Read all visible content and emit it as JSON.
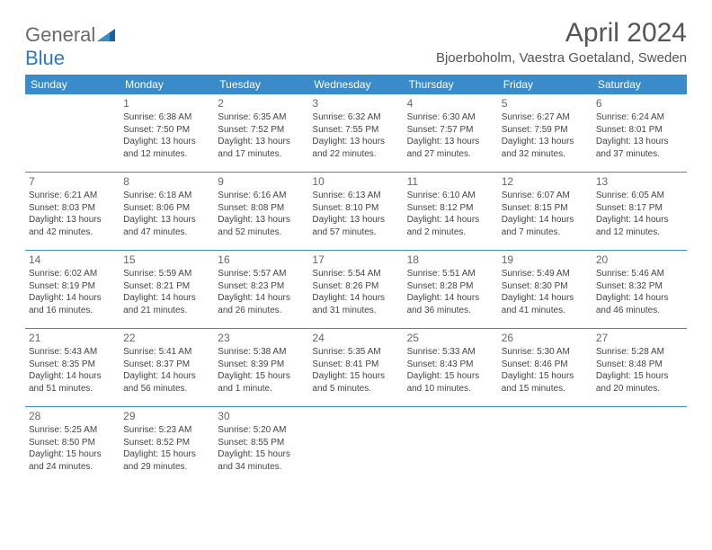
{
  "logo": {
    "part1": "General",
    "part2": "Blue"
  },
  "title": "April 2024",
  "location": "Bjoerboholm, Vaestra Goetaland, Sweden",
  "colors": {
    "header_bg": "#3a8bc9",
    "header_fg": "#ffffff",
    "rule": "#3a8bc9",
    "text": "#444444",
    "title": "#555555",
    "logo_gray": "#6a6a6a",
    "logo_blue": "#2c7ac0"
  },
  "weekdays": [
    "Sunday",
    "Monday",
    "Tuesday",
    "Wednesday",
    "Thursday",
    "Friday",
    "Saturday"
  ],
  "weeks": [
    [
      {
        "n": "",
        "sr": "",
        "ss": "",
        "dl": ""
      },
      {
        "n": "1",
        "sr": "Sunrise: 6:38 AM",
        "ss": "Sunset: 7:50 PM",
        "dl": "Daylight: 13 hours and 12 minutes."
      },
      {
        "n": "2",
        "sr": "Sunrise: 6:35 AM",
        "ss": "Sunset: 7:52 PM",
        "dl": "Daylight: 13 hours and 17 minutes."
      },
      {
        "n": "3",
        "sr": "Sunrise: 6:32 AM",
        "ss": "Sunset: 7:55 PM",
        "dl": "Daylight: 13 hours and 22 minutes."
      },
      {
        "n": "4",
        "sr": "Sunrise: 6:30 AM",
        "ss": "Sunset: 7:57 PM",
        "dl": "Daylight: 13 hours and 27 minutes."
      },
      {
        "n": "5",
        "sr": "Sunrise: 6:27 AM",
        "ss": "Sunset: 7:59 PM",
        "dl": "Daylight: 13 hours and 32 minutes."
      },
      {
        "n": "6",
        "sr": "Sunrise: 6:24 AM",
        "ss": "Sunset: 8:01 PM",
        "dl": "Daylight: 13 hours and 37 minutes."
      }
    ],
    [
      {
        "n": "7",
        "sr": "Sunrise: 6:21 AM",
        "ss": "Sunset: 8:03 PM",
        "dl": "Daylight: 13 hours and 42 minutes."
      },
      {
        "n": "8",
        "sr": "Sunrise: 6:18 AM",
        "ss": "Sunset: 8:06 PM",
        "dl": "Daylight: 13 hours and 47 minutes."
      },
      {
        "n": "9",
        "sr": "Sunrise: 6:16 AM",
        "ss": "Sunset: 8:08 PM",
        "dl": "Daylight: 13 hours and 52 minutes."
      },
      {
        "n": "10",
        "sr": "Sunrise: 6:13 AM",
        "ss": "Sunset: 8:10 PM",
        "dl": "Daylight: 13 hours and 57 minutes."
      },
      {
        "n": "11",
        "sr": "Sunrise: 6:10 AM",
        "ss": "Sunset: 8:12 PM",
        "dl": "Daylight: 14 hours and 2 minutes."
      },
      {
        "n": "12",
        "sr": "Sunrise: 6:07 AM",
        "ss": "Sunset: 8:15 PM",
        "dl": "Daylight: 14 hours and 7 minutes."
      },
      {
        "n": "13",
        "sr": "Sunrise: 6:05 AM",
        "ss": "Sunset: 8:17 PM",
        "dl": "Daylight: 14 hours and 12 minutes."
      }
    ],
    [
      {
        "n": "14",
        "sr": "Sunrise: 6:02 AM",
        "ss": "Sunset: 8:19 PM",
        "dl": "Daylight: 14 hours and 16 minutes."
      },
      {
        "n": "15",
        "sr": "Sunrise: 5:59 AM",
        "ss": "Sunset: 8:21 PM",
        "dl": "Daylight: 14 hours and 21 minutes."
      },
      {
        "n": "16",
        "sr": "Sunrise: 5:57 AM",
        "ss": "Sunset: 8:23 PM",
        "dl": "Daylight: 14 hours and 26 minutes."
      },
      {
        "n": "17",
        "sr": "Sunrise: 5:54 AM",
        "ss": "Sunset: 8:26 PM",
        "dl": "Daylight: 14 hours and 31 minutes."
      },
      {
        "n": "18",
        "sr": "Sunrise: 5:51 AM",
        "ss": "Sunset: 8:28 PM",
        "dl": "Daylight: 14 hours and 36 minutes."
      },
      {
        "n": "19",
        "sr": "Sunrise: 5:49 AM",
        "ss": "Sunset: 8:30 PM",
        "dl": "Daylight: 14 hours and 41 minutes."
      },
      {
        "n": "20",
        "sr": "Sunrise: 5:46 AM",
        "ss": "Sunset: 8:32 PM",
        "dl": "Daylight: 14 hours and 46 minutes."
      }
    ],
    [
      {
        "n": "21",
        "sr": "Sunrise: 5:43 AM",
        "ss": "Sunset: 8:35 PM",
        "dl": "Daylight: 14 hours and 51 minutes."
      },
      {
        "n": "22",
        "sr": "Sunrise: 5:41 AM",
        "ss": "Sunset: 8:37 PM",
        "dl": "Daylight: 14 hours and 56 minutes."
      },
      {
        "n": "23",
        "sr": "Sunrise: 5:38 AM",
        "ss": "Sunset: 8:39 PM",
        "dl": "Daylight: 15 hours and 1 minute."
      },
      {
        "n": "24",
        "sr": "Sunrise: 5:35 AM",
        "ss": "Sunset: 8:41 PM",
        "dl": "Daylight: 15 hours and 5 minutes."
      },
      {
        "n": "25",
        "sr": "Sunrise: 5:33 AM",
        "ss": "Sunset: 8:43 PM",
        "dl": "Daylight: 15 hours and 10 minutes."
      },
      {
        "n": "26",
        "sr": "Sunrise: 5:30 AM",
        "ss": "Sunset: 8:46 PM",
        "dl": "Daylight: 15 hours and 15 minutes."
      },
      {
        "n": "27",
        "sr": "Sunrise: 5:28 AM",
        "ss": "Sunset: 8:48 PM",
        "dl": "Daylight: 15 hours and 20 minutes."
      }
    ],
    [
      {
        "n": "28",
        "sr": "Sunrise: 5:25 AM",
        "ss": "Sunset: 8:50 PM",
        "dl": "Daylight: 15 hours and 24 minutes."
      },
      {
        "n": "29",
        "sr": "Sunrise: 5:23 AM",
        "ss": "Sunset: 8:52 PM",
        "dl": "Daylight: 15 hours and 29 minutes."
      },
      {
        "n": "30",
        "sr": "Sunrise: 5:20 AM",
        "ss": "Sunset: 8:55 PM",
        "dl": "Daylight: 15 hours and 34 minutes."
      },
      {
        "n": "",
        "sr": "",
        "ss": "",
        "dl": ""
      },
      {
        "n": "",
        "sr": "",
        "ss": "",
        "dl": ""
      },
      {
        "n": "",
        "sr": "",
        "ss": "",
        "dl": ""
      },
      {
        "n": "",
        "sr": "",
        "ss": "",
        "dl": ""
      }
    ]
  ]
}
